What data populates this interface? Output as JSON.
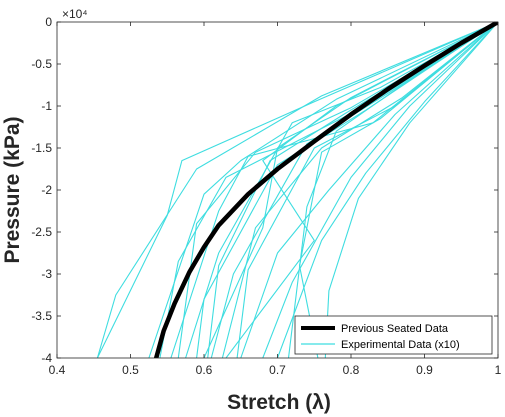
{
  "chart_data": {
    "type": "line",
    "xlabel": "Stretch (λ)",
    "ylabel": "Pressure (kPa)",
    "y_exponent_label": "×10⁴",
    "xlim": [
      0.4,
      1.0
    ],
    "ylim": [
      -4,
      0
    ],
    "y_multiplier": 10000,
    "x_ticks": [
      0.4,
      0.5,
      0.6,
      0.7,
      0.8,
      0.9,
      1
    ],
    "x_tick_labels": [
      "0.4",
      "0.5",
      "0.6",
      "0.7",
      "0.8",
      "0.9",
      "1"
    ],
    "y_ticks": [
      0,
      -0.5,
      -1,
      -1.5,
      -2,
      -2.5,
      -3,
      -3.5,
      -4
    ],
    "y_tick_labels": [
      "0",
      "-0.5",
      "-1",
      "-1.5",
      "-2",
      "-2.5",
      "-3",
      "-3.5",
      "-4"
    ],
    "grid": false,
    "legend_position": "bottom-right",
    "colors": {
      "seated": "#000000",
      "experimental": "#3fdde0"
    },
    "series": [
      {
        "name": "Previous Seated Data",
        "style": "thick",
        "x": [
          1.0,
          0.95,
          0.9,
          0.85,
          0.8,
          0.75,
          0.7,
          0.66,
          0.62,
          0.6,
          0.58,
          0.56,
          0.545,
          0.535
        ],
        "y": [
          0,
          -0.25,
          -0.52,
          -0.8,
          -1.1,
          -1.42,
          -1.75,
          -2.05,
          -2.42,
          -2.68,
          -2.98,
          -3.35,
          -3.68,
          -4.0
        ]
      },
      {
        "name": "Experimental Data (x10)",
        "style": "thin",
        "lines": [
          {
            "x": [
              1.0,
              0.75,
              0.57,
              0.55,
              0.455
            ],
            "y": [
              0,
              -0.95,
              -1.65,
              -2.3,
              -4.0
            ]
          },
          {
            "x": [
              1.0,
              0.76,
              0.59,
              0.48,
              0.455
            ],
            "y": [
              0,
              -0.88,
              -1.75,
              -3.25,
              -4.0
            ]
          },
          {
            "x": [
              1.0,
              0.78,
              0.65,
              0.6,
              0.525
            ],
            "y": [
              0,
              -0.92,
              -1.65,
              -2.05,
              -4.0
            ]
          },
          {
            "x": [
              1.0,
              0.8,
              0.67,
              0.59,
              0.565
            ],
            "y": [
              0,
              -1.02,
              -1.55,
              -2.4,
              -4.0
            ]
          },
          {
            "x": [
              1.0,
              0.84,
              0.72,
              0.62,
              0.575
            ],
            "y": [
              0,
              -0.78,
              -1.2,
              -2.75,
              -4.0
            ]
          },
          {
            "x": [
              1.0,
              0.82,
              0.7,
              0.6,
              0.59
            ],
            "y": [
              0,
              -1.05,
              -1.7,
              -3.3,
              -4.0
            ]
          },
          {
            "x": [
              1.0,
              0.85,
              0.74,
              0.64,
              0.61
            ],
            "y": [
              0,
              -0.85,
              -1.45,
              -3.0,
              -4.0
            ]
          },
          {
            "x": [
              1.0,
              0.87,
              0.76,
              0.67,
              0.625
            ],
            "y": [
              0,
              -0.9,
              -1.5,
              -2.45,
              -4.0
            ]
          },
          {
            "x": [
              1.0,
              0.86,
              0.77,
              0.7,
              0.65
            ],
            "y": [
              0,
              -1.1,
              -2.0,
              -2.75,
              -4.0
            ]
          },
          {
            "x": [
              1.0,
              0.88,
              0.8,
              0.72,
              0.68
            ],
            "y": [
              0,
              -1.0,
              -1.85,
              -3.1,
              -4.0
            ]
          },
          {
            "x": [
              1.0,
              0.9,
              0.82,
              0.76,
              0.7
            ],
            "y": [
              0,
              -0.95,
              -1.8,
              -2.6,
              -4.0
            ]
          },
          {
            "x": [
              1.0,
              0.87,
              0.78,
              0.74,
              0.715
            ],
            "y": [
              0,
              -0.75,
              -1.3,
              -2.2,
              -4.0
            ]
          },
          {
            "x": [
              1.0,
              0.84,
              0.76,
              0.73,
              0.755
            ],
            "y": [
              0,
              -1.15,
              -1.55,
              -2.9,
              -4.0
            ]
          },
          {
            "x": [
              1.0,
              0.88,
              0.81,
              0.77,
              0.765
            ],
            "y": [
              0,
              -1.2,
              -2.1,
              -3.2,
              -4.0
            ]
          },
          {
            "x": [
              1.0,
              0.8,
              0.7,
              0.68,
              0.6
            ],
            "y": [
              0,
              -0.9,
              -1.5,
              -2.45,
              -4.0
            ]
          },
          {
            "x": [
              1.0,
              0.78,
              0.68,
              0.75,
              0.63
            ],
            "y": [
              0,
              -1.0,
              -1.65,
              -2.6,
              -4.0
            ]
          },
          {
            "x": [
              1.0,
              0.83,
              0.66,
              0.62,
              0.555
            ],
            "y": [
              0,
              -1.2,
              -1.6,
              -2.25,
              -4.0
            ]
          },
          {
            "x": [
              1.0,
              0.79,
              0.69,
              0.62,
              0.605
            ],
            "y": [
              0,
              -1.1,
              -1.65,
              -2.9,
              -4.0
            ]
          },
          {
            "x": [
              1.0,
              0.86,
              0.75,
              0.66,
              0.645
            ],
            "y": [
              0,
              -1.0,
              -1.5,
              -2.95,
              -4.0
            ]
          },
          {
            "x": [
              1.0,
              0.82,
              0.63,
              0.565,
              0.54
            ],
            "y": [
              0,
              -1.0,
              -1.85,
              -2.85,
              -4.0
            ]
          }
        ]
      }
    ]
  }
}
